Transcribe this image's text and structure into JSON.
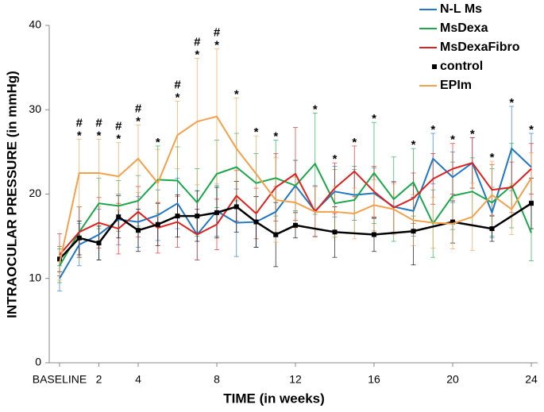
{
  "chart_data": {
    "type": "line",
    "x_label": "TIME (in weeks)",
    "y_label": "INTRAOCULAR PRESSURE (in mmHg)",
    "xlim": [
      0,
      24
    ],
    "xticks": [
      {
        "value": 0,
        "label": "BASELINE"
      },
      2,
      4,
      8,
      12,
      16,
      20,
      24
    ],
    "ylim": [
      0,
      40
    ],
    "yticks": [
      0,
      10,
      20,
      30,
      40
    ],
    "legend": "upper right",
    "series": [
      {
        "name": "N-L Ms",
        "color": "#1f77c8",
        "x": [
          0,
          1,
          2,
          3,
          4,
          5,
          6,
          7,
          8,
          9,
          10,
          11,
          12,
          13,
          14,
          15,
          16,
          17,
          18,
          19,
          20,
          21,
          22,
          23,
          24
        ],
        "values": [
          10,
          14,
          15.2,
          17,
          16.7,
          17.5,
          18.9,
          15.2,
          18,
          16.6,
          16.7,
          17.9,
          21,
          18,
          20.3,
          19.9,
          20.1,
          18.5,
          18,
          24.2,
          22,
          23.7,
          17.8,
          25.4,
          23.2
        ],
        "errors": [
          1.5,
          2.5,
          3,
          3,
          3,
          3,
          3,
          3,
          3,
          4,
          3,
          3,
          3,
          3,
          3,
          3,
          3,
          3,
          3,
          3,
          3,
          3,
          3,
          5,
          4
        ]
      },
      {
        "name": "MsDexa",
        "color": "#1aa84a",
        "x": [
          0,
          1,
          2,
          3,
          4,
          5,
          6,
          7,
          8,
          9,
          10,
          11,
          12,
          13,
          14,
          15,
          16,
          17,
          18,
          19,
          20,
          21,
          22,
          23,
          24
        ],
        "values": [
          11.5,
          15.5,
          18.9,
          18.6,
          19.2,
          21.7,
          21.6,
          19,
          22.4,
          23.2,
          21.3,
          21.9,
          21,
          23.6,
          18.9,
          19.3,
          22.5,
          19.4,
          21.4,
          16.5,
          19.8,
          20.3,
          19,
          21,
          15.4
        ],
        "errors": [
          2,
          3,
          3,
          3,
          3,
          4,
          4,
          4,
          4,
          4,
          3.5,
          4.5,
          3,
          6,
          4,
          4,
          6,
          5,
          4,
          4,
          4,
          4,
          4,
          5,
          3.3
        ]
      },
      {
        "name": "MsDexaFibro",
        "color": "#e0201e",
        "x": [
          0,
          1,
          2,
          3,
          4,
          5,
          6,
          7,
          8,
          9,
          10,
          11,
          12,
          13,
          14,
          15,
          16,
          17,
          18,
          19,
          20,
          21,
          22,
          23,
          24
        ],
        "values": [
          12.8,
          15.5,
          16.6,
          15.9,
          17.9,
          16,
          16.7,
          15.2,
          16.4,
          19.8,
          17.7,
          20.8,
          22.4,
          17.9,
          20.7,
          22.7,
          20.3,
          18.4,
          19.5,
          21.8,
          23,
          23.7,
          20.5,
          20.8,
          23
        ],
        "errors": [
          2.5,
          3,
          3,
          3,
          3,
          3,
          3,
          3,
          3,
          3,
          3,
          4,
          5.5,
          3,
          3,
          3,
          3,
          3,
          3,
          3,
          3,
          3,
          3,
          3,
          3
        ]
      },
      {
        "name": "control",
        "color": "#000000",
        "marker": "square",
        "x": [
          0,
          1,
          2,
          3,
          4,
          5,
          6,
          7,
          8,
          9,
          10,
          11,
          12,
          14,
          16,
          18,
          20,
          22,
          24
        ],
        "values": [
          12.3,
          14.8,
          14.2,
          17.3,
          15.7,
          16.4,
          17.4,
          17.4,
          17.8,
          18.5,
          16.7,
          15.2,
          16.3,
          15.5,
          15.2,
          15.6,
          16.7,
          15.9,
          18.9
        ],
        "errors": [
          1.5,
          2,
          2,
          2.5,
          2.5,
          2.5,
          2.5,
          3,
          3,
          3,
          3,
          3.8,
          1.5,
          3,
          2,
          4,
          2.5,
          1.5,
          3
        ]
      },
      {
        "name": "EPIm",
        "color": "#f5a04a",
        "x": [
          0,
          1,
          2,
          3,
          4,
          5,
          6,
          7,
          8,
          9,
          10,
          11,
          12,
          13,
          14,
          15,
          16,
          17,
          18,
          19,
          20,
          21,
          22,
          23,
          24
        ],
        "values": [
          11.8,
          22.5,
          22.5,
          22.1,
          24.2,
          21.3,
          27,
          28.6,
          29.2,
          25.4,
          22.4,
          19.3,
          19,
          17.9,
          17.9,
          17.7,
          18.7,
          18.2,
          16.9,
          16.6,
          16.5,
          17.3,
          19.9,
          18.2,
          21.9
        ],
        "errors": [
          2,
          4,
          4,
          4,
          4,
          4,
          4,
          7.5,
          8,
          6,
          4.5,
          5,
          3,
          3,
          3,
          3,
          3,
          3,
          3,
          3,
          3,
          4,
          4,
          3,
          3
        ]
      }
    ],
    "annotations": [
      {
        "text": "*",
        "weeks": [
          1,
          2,
          3,
          4,
          5,
          6,
          7,
          8,
          9,
          10,
          11,
          13,
          14,
          15,
          16,
          18,
          19,
          20,
          21,
          22,
          23,
          24
        ]
      },
      {
        "text": "#",
        "weeks": [
          1,
          2,
          3,
          4,
          6,
          7,
          8
        ]
      }
    ]
  }
}
